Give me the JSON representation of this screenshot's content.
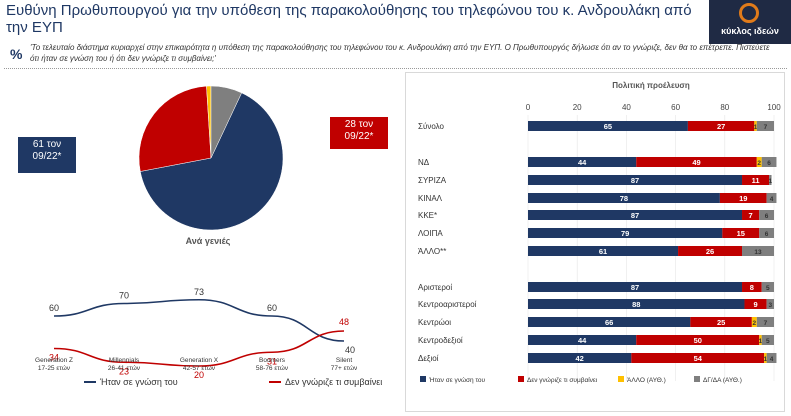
{
  "page": {
    "title": "Ευθύνη Πρωθυπουργού για την υπόθεση της παρακολούθησης του τηλεφώνου του κ. Ανδρουλάκη από την ΕΥΠ",
    "percent_symbol": "%",
    "question": "'Το τελευταίο διάστημα κυριαρχεί στην επικαιρότητα η υπόθεση της παρακολούθησης του τηλεφώνου του κ. Ανδρουλάκη από την ΕΥΠ. Ο Πρωθυπουργός δήλωσε ότι αν το γνώριζε, δεν θα το επέτρεπε. Πιστεύετε ότι ήταν σε γνώση του ή ότι δεν γνώριζε τι συμβαίνει;'",
    "logo_text": "κύκλος ιδεών",
    "colors": {
      "navy": "#1f3864",
      "red": "#c00000",
      "yellow": "#ffc000",
      "gray": "#7f7f7f"
    }
  },
  "callouts": {
    "knew": "61 τον 09/22*",
    "not_knew": "28 τον 09/22*"
  },
  "chart_data": [
    {
      "type": "pie",
      "title": "Ανά γενιές",
      "values": [
        65,
        27,
        1,
        7
      ],
      "colors": [
        "#1f3864",
        "#c00000",
        "#ffc000",
        "#7f7f7f"
      ]
    },
    {
      "type": "line",
      "categories": [
        "Generation Z (17-25 ετών)",
        "Millennials (26-41 ετών)",
        "Generation X (42-57 ετών)",
        "Boomers (58-76 ετών)",
        "Silent (77+ ετών)"
      ],
      "series": [
        {
          "name": "Ήταν σε γνώση του",
          "values": [
            60,
            70,
            73,
            60,
            40
          ],
          "color": "#1f3864"
        },
        {
          "name": "Δεν γνώριζε τι συμβαίνει",
          "values": [
            34,
            23,
            20,
            31,
            48
          ],
          "color": "#c00000"
        }
      ],
      "legend": "bottom"
    },
    {
      "type": "bar",
      "orientation": "horizontal-stacked",
      "title": "Πολιτική προέλευση",
      "xlim": [
        0,
        100
      ],
      "xticks": [
        "0",
        "20",
        "40",
        "60",
        "80",
        "100"
      ],
      "categories": [
        "Σύνολο",
        "ΝΔ",
        "ΣΥΡΙΖΑ",
        "ΚΙΝΑΛ",
        "ΚΚΕ*",
        "ΛΟΙΠΑ",
        "ΆΛΛΟ**",
        "Αριστεροί",
        "Κεντροαριστεροί",
        "Κεντρώοι",
        "Κεντροδεξιοί",
        "Δεξιοί"
      ],
      "groups_after": [
        0,
        6
      ],
      "series": [
        {
          "name": "Ήταν σε γνώση του",
          "color": "#1f3864",
          "values": [
            65,
            44,
            87,
            78,
            87,
            79,
            61,
            87,
            88,
            66,
            44,
            42
          ]
        },
        {
          "name": "Δεν γνώριζε τι συμβαίνει",
          "color": "#c00000",
          "values": [
            27,
            49,
            11,
            19,
            7,
            15,
            26,
            8,
            9,
            25,
            50,
            54
          ]
        },
        {
          "name": "ΆΛΛΟ (ΑΥΘ.)",
          "color": "#ffc000",
          "values": [
            1,
            2,
            0,
            0,
            0,
            0,
            0,
            0,
            0,
            2,
            1,
            1
          ]
        },
        {
          "name": "ΔΓ/ΔΑ (ΑΥΘ.)",
          "color": "#7f7f7f",
          "values": [
            7,
            6,
            1,
            4,
            6,
            6,
            13,
            5,
            3,
            7,
            5,
            4
          ]
        }
      ],
      "legend": "bottom"
    }
  ]
}
